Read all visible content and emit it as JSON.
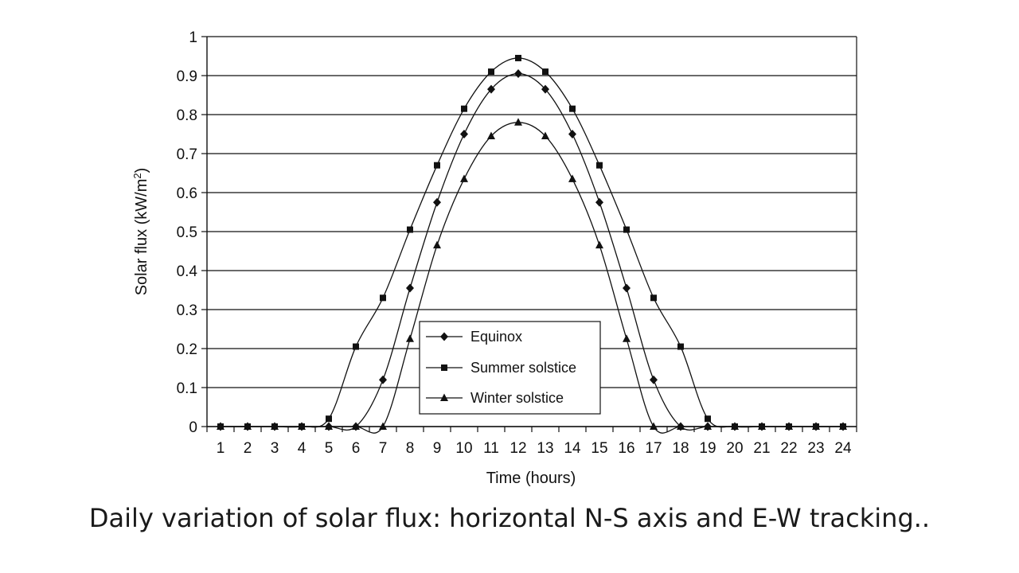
{
  "caption": "Daily variation of solar flux: horizontal N-S axis and E-W tracking..",
  "chart_data": {
    "type": "line",
    "xlabel": "Time (hours)",
    "ylabel_main": "Solar flux (kW/m",
    "ylabel_sup": "2",
    "ylabel_close": ")",
    "ylim": [
      0,
      1
    ],
    "yticks": [
      "0",
      "0.1",
      "0.2",
      "0.3",
      "0.4",
      "0.5",
      "0.6",
      "0.7",
      "0.8",
      "0.9",
      "1"
    ],
    "x": [
      "1",
      "2",
      "3",
      "4",
      "5",
      "6",
      "7",
      "8",
      "9",
      "10",
      "11",
      "12",
      "13",
      "14",
      "15",
      "16",
      "17",
      "18",
      "19",
      "20",
      "21",
      "22",
      "23",
      "24"
    ],
    "grid": "horizontal",
    "legend_position": "bottom-center",
    "series": [
      {
        "name": "Equinox",
        "marker": "diamond",
        "values": [
          0,
          0,
          0,
          0,
          0,
          0,
          0.12,
          0.355,
          0.575,
          0.75,
          0.865,
          0.905,
          0.865,
          0.75,
          0.575,
          0.355,
          0.12,
          0,
          0,
          0,
          0,
          0,
          0,
          0
        ]
      },
      {
        "name": "Summer solstice",
        "marker": "square",
        "values": [
          0,
          0,
          0,
          0,
          0.02,
          0.205,
          0.33,
          0.505,
          0.67,
          0.815,
          0.91,
          0.945,
          0.91,
          0.815,
          0.67,
          0.505,
          0.33,
          0.205,
          0.02,
          0,
          0,
          0,
          0,
          0
        ]
      },
      {
        "name": "Winter solstice",
        "marker": "triangle",
        "values": [
          0,
          0,
          0,
          0,
          0,
          0,
          0,
          0.225,
          0.465,
          0.635,
          0.745,
          0.78,
          0.745,
          0.635,
          0.465,
          0.225,
          0,
          0,
          0,
          0,
          0,
          0,
          0,
          0
        ]
      }
    ]
  }
}
